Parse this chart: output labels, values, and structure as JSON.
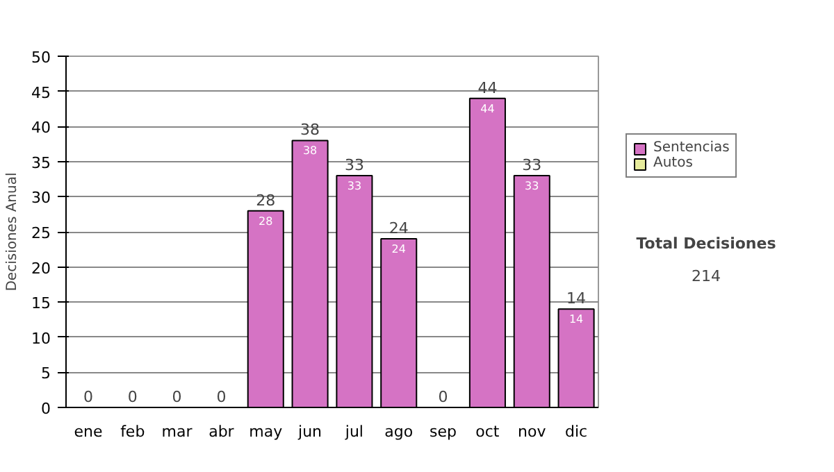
{
  "chart_data": {
    "type": "bar",
    "stacked": true,
    "ylabel": "Decisiones Anual",
    "categories": [
      "ene",
      "feb",
      "mar",
      "abr",
      "may",
      "jun",
      "jul",
      "ago",
      "sep",
      "oct",
      "nov",
      "dic"
    ],
    "series": [
      {
        "name": "Sentencias",
        "color": "#d573c4",
        "values": [
          0,
          0,
          0,
          0,
          28,
          38,
          33,
          24,
          0,
          44,
          33,
          14
        ],
        "value_labels": [
          null,
          null,
          null,
          null,
          "28",
          "38",
          "33",
          "24",
          null,
          "44",
          "33",
          "14"
        ]
      },
      {
        "name": "Autos",
        "color": "#e6eb9c",
        "values": [
          0,
          0,
          0,
          0,
          0,
          0,
          0,
          0,
          0,
          0,
          0,
          0
        ]
      }
    ],
    "totals": [
      "0",
      "0",
      "0",
      "0",
      "28",
      "38",
      "33",
      "24",
      "0",
      "44",
      "33",
      "14"
    ],
    "ylim": [
      0,
      50
    ],
    "yticks": [
      0,
      5,
      10,
      15,
      20,
      25,
      30,
      35,
      40,
      45,
      50
    ],
    "grid": "y",
    "legend": "right",
    "annotations": [
      "Total Decisiones",
      "214"
    ]
  }
}
